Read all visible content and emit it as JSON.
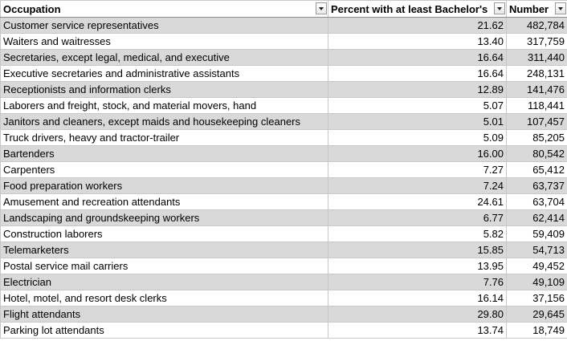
{
  "table": {
    "header": [
      "Occupation",
      "Percent with at least Bachelor's",
      "Number"
    ],
    "rows": [
      [
        "Customer service representatives",
        "21.62",
        "482,784"
      ],
      [
        "Waiters and waitresses",
        "13.40",
        "317,759"
      ],
      [
        "Secretaries, except legal, medical, and executive",
        "16.64",
        "311,440"
      ],
      [
        "Executive secretaries and administrative assistants",
        "16.64",
        "248,131"
      ],
      [
        "Receptionists and information clerks",
        "12.89",
        "141,476"
      ],
      [
        "Laborers and freight, stock, and material movers, hand",
        "5.07",
        "118,441"
      ],
      [
        "Janitors and cleaners, except maids and housekeeping cleaners",
        "5.01",
        "107,457"
      ],
      [
        "Truck drivers, heavy and tractor-trailer",
        "5.09",
        "85,205"
      ],
      [
        "Bartenders",
        "16.00",
        "80,542"
      ],
      [
        "Carpenters",
        "7.27",
        "65,412"
      ],
      [
        "Food preparation workers",
        "7.24",
        "63,737"
      ],
      [
        "Amusement and recreation attendants",
        "24.61",
        "63,704"
      ],
      [
        "Landscaping and groundskeeping workers",
        "6.77",
        "62,414"
      ],
      [
        "Construction laborers",
        "5.82",
        "59,409"
      ],
      [
        "Telemarketers",
        "15.85",
        "54,713"
      ],
      [
        "Postal service mail carriers",
        "13.95",
        "49,452"
      ],
      [
        "Electrician",
        "7.76",
        "49,109"
      ],
      [
        "Hotel, motel, and resort desk clerks",
        "16.14",
        "37,156"
      ],
      [
        "Flight attendants",
        "29.80",
        "29,645"
      ],
      [
        "Parking lot attendants",
        "13.74",
        "18,749"
      ]
    ]
  }
}
